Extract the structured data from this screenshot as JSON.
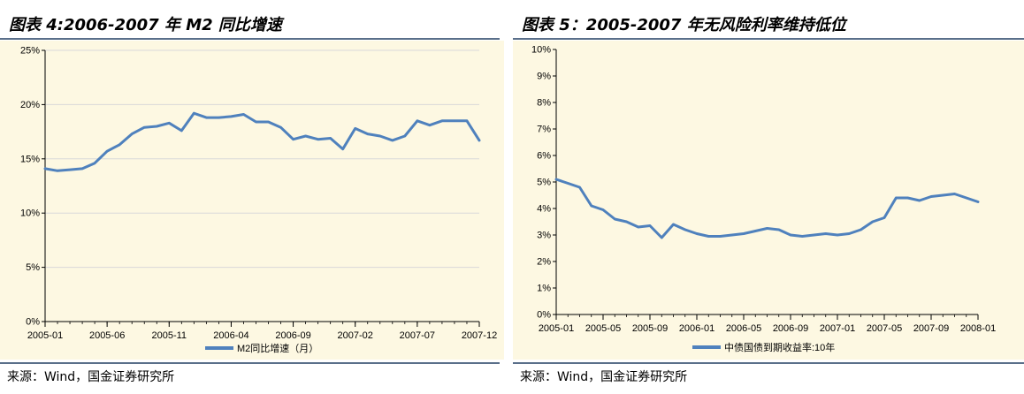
{
  "left": {
    "title": "图表 4:2006-2007 年 M2 同比增速",
    "source": "来源：Wind，国金证券研究所",
    "chart_data": {
      "type": "line",
      "y_ticks": [
        "0%",
        "5%",
        "10%",
        "15%",
        "20%",
        "25%"
      ],
      "ylim": [
        0,
        25
      ],
      "x_ticks": [
        "2005-01",
        "2005-06",
        "2005-11",
        "2006-04",
        "2006-09",
        "2007-02",
        "2007-07",
        "2007-12"
      ],
      "x": [
        "2005-01",
        "2005-02",
        "2005-03",
        "2005-04",
        "2005-05",
        "2005-06",
        "2005-07",
        "2005-08",
        "2005-09",
        "2005-10",
        "2005-11",
        "2005-12",
        "2006-01",
        "2006-02",
        "2006-03",
        "2006-04",
        "2006-05",
        "2006-06",
        "2006-07",
        "2006-08",
        "2006-09",
        "2006-10",
        "2006-11",
        "2006-12",
        "2007-01",
        "2007-02",
        "2007-03",
        "2007-04",
        "2007-05",
        "2007-06",
        "2007-07",
        "2007-08",
        "2007-09",
        "2007-10",
        "2007-11",
        "2007-12"
      ],
      "series": [
        {
          "name": "M2同比增速（月）",
          "color": "#4f81bd",
          "values": [
            14.1,
            13.9,
            14.0,
            14.1,
            14.6,
            15.7,
            16.3,
            17.3,
            17.9,
            18.0,
            18.3,
            17.6,
            19.2,
            18.8,
            18.8,
            18.9,
            19.1,
            18.4,
            18.4,
            17.9,
            16.8,
            17.1,
            16.8,
            16.9,
            15.9,
            17.8,
            17.3,
            17.1,
            16.7,
            17.1,
            18.5,
            18.1,
            18.5,
            18.5,
            18.5,
            16.7
          ]
        }
      ],
      "grid": "horizontal"
    }
  },
  "right": {
    "title": "图表 5：2005-2007 年无风险利率维持低位",
    "source": "来源：Wind，国金证券研究所",
    "chart_data": {
      "type": "line",
      "y_ticks": [
        "0%",
        "1%",
        "2%",
        "3%",
        "4%",
        "5%",
        "6%",
        "7%",
        "8%",
        "9%",
        "10%"
      ],
      "ylim": [
        0,
        10
      ],
      "x_ticks": [
        "2005-01",
        "2005-05",
        "2005-09",
        "2006-01",
        "2006-05",
        "2006-09",
        "2007-01",
        "2007-05",
        "2007-09",
        "2008-01"
      ],
      "x": [
        "2005-01",
        "2005-02",
        "2005-03",
        "2005-04",
        "2005-05",
        "2005-06",
        "2005-07",
        "2005-08",
        "2005-09",
        "2005-10",
        "2005-11",
        "2005-12",
        "2006-01",
        "2006-02",
        "2006-03",
        "2006-04",
        "2006-05",
        "2006-06",
        "2006-07",
        "2006-08",
        "2006-09",
        "2006-10",
        "2006-11",
        "2006-12",
        "2007-01",
        "2007-02",
        "2007-03",
        "2007-04",
        "2007-05",
        "2007-06",
        "2007-07",
        "2007-08",
        "2007-09",
        "2007-10",
        "2007-11",
        "2007-12",
        "2008-01"
      ],
      "series": [
        {
          "name": "中债国债到期收益率:10年",
          "color": "#4f81bd",
          "values": [
            5.1,
            4.95,
            4.8,
            4.1,
            3.95,
            3.6,
            3.5,
            3.3,
            3.35,
            2.9,
            3.4,
            3.2,
            3.05,
            2.95,
            2.95,
            3.0,
            3.05,
            3.15,
            3.25,
            3.2,
            3.0,
            2.95,
            3.0,
            3.05,
            3.0,
            3.05,
            3.2,
            3.5,
            3.65,
            4.4,
            4.4,
            4.3,
            4.45,
            4.5,
            4.55,
            4.4,
            4.25
          ]
        }
      ],
      "grid": "none"
    }
  }
}
